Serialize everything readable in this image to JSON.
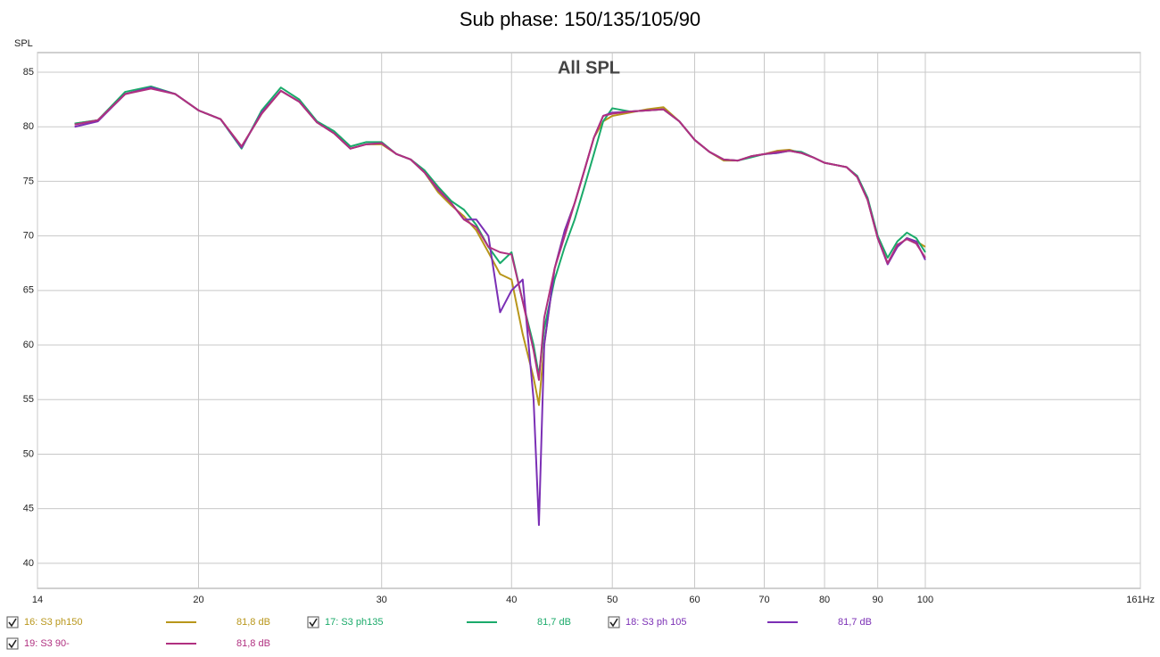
{
  "chart_data": {
    "type": "line",
    "title": "Sub phase: 150/135/105/90",
    "annotation": "All SPL",
    "y_label": "SPL",
    "x_log": true,
    "grid": true,
    "xlim": [
      14,
      161
    ],
    "ylim": [
      37.7,
      86.8
    ],
    "xticks": [
      14,
      20,
      30,
      40,
      50,
      60,
      70,
      80,
      90,
      100,
      {
        "value": 161,
        "label": "161Hz"
      }
    ],
    "yticks": [
      40,
      45,
      50,
      55,
      60,
      65,
      70,
      75,
      80,
      85
    ],
    "x": [
      15.2,
      16,
      17,
      18,
      19,
      20,
      21,
      22,
      23,
      24,
      25,
      26,
      27,
      28,
      29,
      30,
      31,
      32,
      33,
      34,
      35,
      36,
      37,
      38,
      39,
      40,
      41,
      42,
      42.5,
      43,
      44,
      45,
      46,
      47,
      48,
      49,
      50,
      52,
      54,
      56,
      58,
      60,
      62,
      64,
      66,
      68,
      70,
      72,
      74,
      76,
      78,
      80,
      82,
      84,
      86,
      88,
      90,
      92,
      94,
      96,
      98,
      100
    ],
    "series": [
      {
        "name": "16: S3 ph150",
        "legend_level": "81,8 dB",
        "color": "#b8961a",
        "values": [
          80.3,
          80.6,
          83.0,
          83.6,
          83.0,
          81.5,
          80.7,
          78.2,
          81.2,
          83.3,
          82.3,
          80.4,
          79.4,
          78.0,
          78.4,
          78.4,
          77.5,
          77.0,
          75.8,
          74.0,
          72.8,
          71.8,
          70.5,
          68.5,
          66.5,
          66.0,
          61,
          57,
          54.5,
          60,
          67,
          70.5,
          73,
          76,
          79,
          80.5,
          81.0,
          81.3,
          81.6,
          81.8,
          80.5,
          78.8,
          77.7,
          76.9,
          76.9,
          77.3,
          77.5,
          77.8,
          77.9,
          77.6,
          77.2,
          76.7,
          76.5,
          76.3,
          75.4,
          73.3,
          69.8,
          67.5,
          69.0,
          69.8,
          69.5,
          69.0
        ]
      },
      {
        "name": "17: S3 ph135",
        "legend_level": "81,7 dB",
        "color": "#1aaa6a",
        "values": [
          80.3,
          80.6,
          83.2,
          83.7,
          83.0,
          81.5,
          80.7,
          78.0,
          81.5,
          83.6,
          82.5,
          80.5,
          79.6,
          78.2,
          78.6,
          78.6,
          77.5,
          77.0,
          76.0,
          74.5,
          73.2,
          72.4,
          71.0,
          69.0,
          67.5,
          68.5,
          64,
          60,
          57.2,
          61.5,
          66,
          69,
          71.5,
          74.5,
          77.5,
          80.5,
          81.7,
          81.4,
          81.5,
          81.6,
          80.5,
          78.8,
          77.7,
          77.0,
          76.9,
          77.2,
          77.5,
          77.6,
          77.8,
          77.7,
          77.2,
          76.7,
          76.5,
          76.3,
          75.5,
          73.5,
          70.0,
          68.0,
          69.5,
          70.3,
          69.8,
          68.5
        ]
      },
      {
        "name": "18: S3 ph 105",
        "legend_level": "81,7 dB",
        "color": "#7b2fb5",
        "values": [
          80.0,
          80.5,
          83.0,
          83.6,
          83.0,
          81.5,
          80.7,
          78.1,
          81.3,
          83.3,
          82.3,
          80.4,
          79.4,
          78.0,
          78.4,
          78.5,
          77.5,
          77.0,
          75.8,
          74.2,
          73.0,
          71.5,
          71.5,
          70.0,
          63.0,
          65.0,
          66,
          55,
          43.5,
          60,
          67,
          70.5,
          73,
          76,
          79,
          81.0,
          81.3,
          81.4,
          81.5,
          81.6,
          80.5,
          78.8,
          77.7,
          77.0,
          76.9,
          77.3,
          77.5,
          77.6,
          77.8,
          77.6,
          77.2,
          76.7,
          76.5,
          76.3,
          75.4,
          73.3,
          69.8,
          67.4,
          69.0,
          69.8,
          69.5,
          67.8
        ]
      },
      {
        "name": "19: S3 90-",
        "legend_level": "81,8 dB",
        "color": "#b03080",
        "values": [
          80.2,
          80.6,
          83.0,
          83.5,
          83.0,
          81.5,
          80.7,
          78.2,
          81.2,
          83.3,
          82.3,
          80.4,
          79.4,
          78.0,
          78.4,
          78.5,
          77.5,
          77.0,
          75.8,
          74.3,
          73.0,
          71.5,
          70.8,
          69.0,
          68.5,
          68.3,
          64,
          59.5,
          56.8,
          62.5,
          67,
          70,
          73,
          76,
          79,
          81.0,
          81.2,
          81.4,
          81.5,
          81.6,
          80.5,
          78.8,
          77.7,
          77.0,
          76.9,
          77.3,
          77.5,
          77.7,
          77.8,
          77.6,
          77.2,
          76.7,
          76.5,
          76.3,
          75.4,
          73.3,
          69.8,
          67.5,
          69.2,
          69.7,
          69.3,
          68.0
        ]
      }
    ]
  }
}
